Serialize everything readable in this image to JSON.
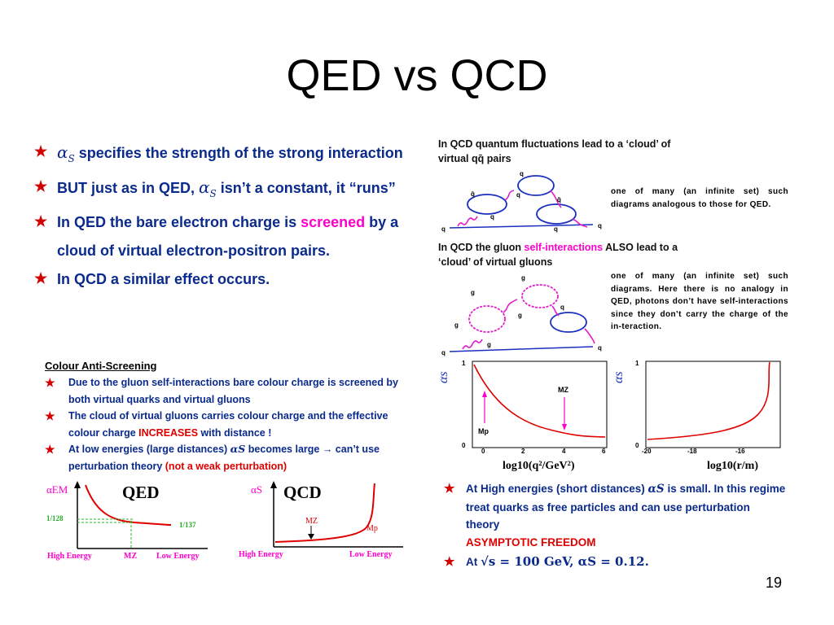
{
  "slide": {
    "title": "QED vs QCD",
    "page_number": "19"
  },
  "left_bullets": {
    "b1_alpha": "α",
    "b1_sub": "S",
    "b1_rest": " specifies the strength of the strong interaction",
    "b2_pre": "BUT just as in QED, ",
    "b2_alpha": "α",
    "b2_sub": "S",
    "b2_rest": " isn’t a constant, it “runs”",
    "b3_pre": "In QED the bare electron charge is ",
    "b3_highlight": "screened",
    "b3_rest": " by a cloud of virtual electron-positron pairs.",
    "b4": "In QCD a similar effect occurs."
  },
  "anti_screening": {
    "title": "Colour Anti-Screening",
    "i1": "Due to the gluon self-interactions bare colour charge is screened by both virtual quarks and virtual gluons",
    "i2_pre": "The cloud of virtual gluons carries colour charge and the effective colour charge ",
    "i2_highlight": "INCREASES",
    "i2_rest": " with distance !",
    "i3_pre": "At low energies (large distances) ",
    "i3_alpha": "αS",
    "i3_mid": " becomes large →  can’t use perturbation theory ",
    "i3_highlight": "(not a weak perturbation)"
  },
  "qed_sketch": {
    "title": "QED",
    "ylabel": "αEM",
    "left_value": "1/128",
    "right_value": "1/137",
    "x_left": "High Energy",
    "x_mid": "MZ",
    "x_right": "Low Energy"
  },
  "qcd_sketch": {
    "title": "QCD",
    "ylabel": "αS",
    "mz_label": "MZ",
    "mp_label": "Mp",
    "x_left": "High Energy",
    "x_right": "Low Energy"
  },
  "right_text": {
    "qcd_cloud_1": "In QCD quantum fluctuations lead to a ‘cloud’ of",
    "qcd_cloud_2": "virtual qq̄ pairs",
    "note1": "one of many (an infinite set) such diagrams analogous to those for QED.",
    "gluon_1_pre": "In QCD the gluon ",
    "gluon_1_highlight": "self-interactions",
    "gluon_1_rest": " ALSO lead to a",
    "gluon_2": "‘cloud’ of virtual  gluons",
    "note2": "one of many (an infinite set) such diagrams. Here there is no analogy in QED, photons don’t have self-interactions since they don’t carry the charge of the in-teraction."
  },
  "diagram_labels": {
    "q": "q",
    "qbar": "q̄",
    "g": "g"
  },
  "plots": {
    "left": {
      "ylabel": "αs",
      "ytick_top": "1",
      "ytick_bottom": "0",
      "xticks": [
        "0",
        "2",
        "4",
        "6"
      ],
      "xlabel": "log10(q²/GeV²)",
      "mz": "MZ",
      "mp": "Mp"
    },
    "right": {
      "ylabel": "αs",
      "ytick_top": "1",
      "ytick_bottom": "0",
      "xticks": [
        "-20",
        "-18",
        "-16"
      ],
      "xlabel": "log10(r/m)"
    }
  },
  "right_bullets": {
    "r1_pre": "At High energies (short distances) ",
    "r1_alpha": "αS",
    "r1_rest": " is small. In this regime treat quarks as free particles and can use perturbation theory",
    "r1_highlight": "ASYMPTOTIC FREEDOM",
    "r2_pre": "At ",
    "r2_math": "√s = 100 GeV, αS = 0.12."
  },
  "colors": {
    "bullet_blue": "#0a2a8c",
    "star_red": "#d40000",
    "highlight_pink": "#ff00cc",
    "highlight_red": "#e00000",
    "curve_red": "#e00000",
    "diagram_blue": "#1a2fbf",
    "gluon_magenta": "#e020c8"
  }
}
